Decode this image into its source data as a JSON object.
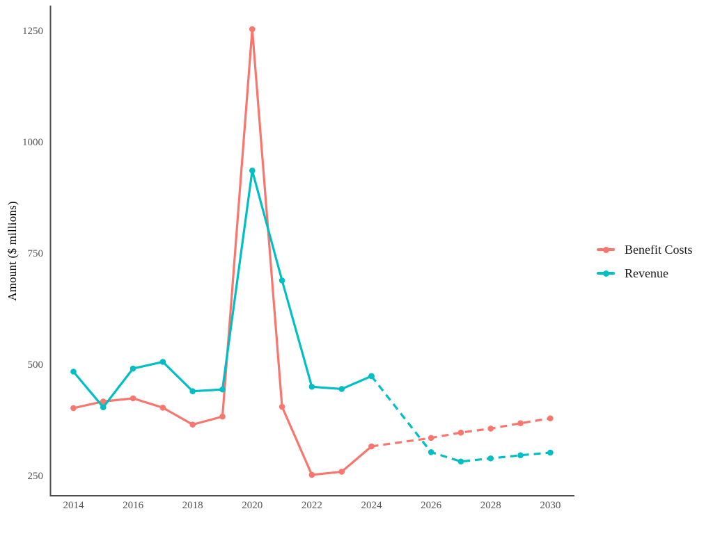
{
  "page": {
    "background": "#ffffff"
  },
  "theme": {
    "axis_line_color": "#4d4d4d",
    "tick_label_color": "#555555",
    "axis_title_color": "#000000",
    "legend_text_color": "#1a1a1a"
  },
  "chart_data": {
    "type": "line",
    "title": "",
    "xlabel": "",
    "ylabel": "Amount ($ millions)",
    "x_ticks": [
      2014,
      2016,
      2018,
      2020,
      2022,
      2024,
      2026,
      2028,
      2030
    ],
    "y_ticks": [
      250,
      500,
      750,
      1000,
      1250
    ],
    "xlim": [
      2013.23,
      2030.81
    ],
    "ylim": [
      206,
      1308
    ],
    "grid": false,
    "legend_position": "right",
    "series": [
      {
        "name": "Benefit Costs",
        "color": "#F8766D",
        "segments": [
          {
            "style": "solid",
            "x": [
              2014,
              2015,
              2016,
              2017,
              2018,
              2019,
              2020,
              2021,
              2022,
              2023,
              2024
            ],
            "y": [
              403,
              418,
              425,
              404,
              366,
              384,
              1255,
              406,
              253,
              260,
              317
            ]
          },
          {
            "style": "dashed",
            "x": [
              2024,
              2026,
              2027,
              2028,
              2029,
              2030
            ],
            "y": [
              317,
              336,
              348,
              357,
              369,
              380
            ]
          }
        ]
      },
      {
        "name": "Revenue",
        "color": "#00BFC4",
        "segments": [
          {
            "style": "solid",
            "x": [
              2014,
              2015,
              2016,
              2017,
              2018,
              2019,
              2020,
              2021,
              2022,
              2023,
              2024
            ],
            "y": [
              485,
              405,
              492,
              507,
              441,
              445,
              937,
              690,
              451,
              446,
              475
            ]
          },
          {
            "style": "dashed",
            "x": [
              2024,
              2026,
              2027,
              2028,
              2029,
              2030
            ],
            "y": [
              475,
              304,
              283,
              290,
              297,
              303
            ]
          }
        ]
      }
    ]
  }
}
